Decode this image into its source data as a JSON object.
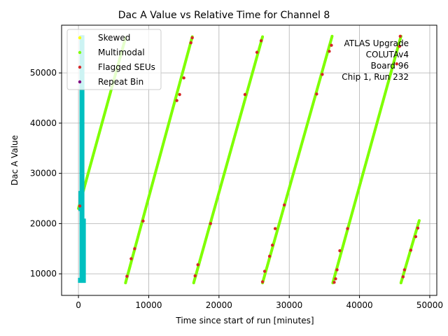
{
  "chart_data": {
    "type": "scatter",
    "title": "Dac A Value vs Relative Time for Channel 8",
    "xlabel": "Time since start of run [minutes]",
    "ylabel": "Dac A Value",
    "xlim": [
      -2400,
      51000
    ],
    "ylim": [
      5700,
      59500
    ],
    "xticks": [
      0,
      10000,
      20000,
      30000,
      40000,
      50000
    ],
    "yticks": [
      10000,
      20000,
      30000,
      40000,
      50000
    ],
    "grid": true,
    "legend_position": "top-left",
    "legend": [
      {
        "name": "Skewed",
        "color": "#ffff00"
      },
      {
        "name": "Multimodal",
        "color": "#7fff00"
      },
      {
        "name": "Flagged SEUs",
        "color": "#d62728"
      },
      {
        "name": "Repeat Bin",
        "color": "#800080"
      }
    ],
    "annotation": [
      "ATLAS Upgrade",
      "COLUTAv4",
      "Board 96",
      "Chip 1, Run 232"
    ],
    "repeat_bin_color": "#00c0c0",
    "repeat_bin_band": {
      "x_range": [
        80,
        1000
      ],
      "segments": [
        {
          "x": 80,
          "y": [
            8200,
            9200
          ]
        },
        {
          "x": 150,
          "y": [
            22500,
            26500
          ]
        },
        {
          "x": 300,
          "y": [
            8200,
            57500
          ]
        },
        {
          "x": 500,
          "y": [
            8200,
            57500
          ]
        },
        {
          "x": 700,
          "y": [
            8200,
            57500
          ]
        },
        {
          "x": 900,
          "y": [
            8200,
            21000
          ]
        }
      ]
    },
    "ramps": [
      {
        "x": [
          0,
          6700
        ],
        "y": [
          23000,
          57000
        ]
      },
      {
        "x": [
          6700,
          16200
        ],
        "y": [
          8200,
          57200
        ]
      },
      {
        "x": [
          16400,
          26200
        ],
        "y": [
          8200,
          57200
        ]
      },
      {
        "x": [
          26200,
          36100
        ],
        "y": [
          8200,
          57300
        ]
      },
      {
        "x": [
          36200,
          45900
        ],
        "y": [
          8200,
          57300
        ]
      },
      {
        "x": [
          45900,
          48500
        ],
        "y": [
          8200,
          20600
        ]
      }
    ],
    "flagged_seus": [
      {
        "x": 200,
        "y": 23500
      },
      {
        "x": 6900,
        "y": 9500
      },
      {
        "x": 7500,
        "y": 13000
      },
      {
        "x": 8000,
        "y": 15000
      },
      {
        "x": 9200,
        "y": 20500
      },
      {
        "x": 14000,
        "y": 44500
      },
      {
        "x": 14400,
        "y": 45700
      },
      {
        "x": 15000,
        "y": 49000
      },
      {
        "x": 16000,
        "y": 56000
      },
      {
        "x": 16200,
        "y": 57000
      },
      {
        "x": 16600,
        "y": 9600
      },
      {
        "x": 17000,
        "y": 11800
      },
      {
        "x": 18800,
        "y": 20000
      },
      {
        "x": 23700,
        "y": 45700
      },
      {
        "x": 25400,
        "y": 54100
      },
      {
        "x": 26000,
        "y": 56400
      },
      {
        "x": 26200,
        "y": 8400
      },
      {
        "x": 26500,
        "y": 10500
      },
      {
        "x": 27200,
        "y": 13500
      },
      {
        "x": 27600,
        "y": 15700
      },
      {
        "x": 28000,
        "y": 19000
      },
      {
        "x": 29300,
        "y": 23700
      },
      {
        "x": 33900,
        "y": 45800
      },
      {
        "x": 34700,
        "y": 49700
      },
      {
        "x": 35700,
        "y": 54300
      },
      {
        "x": 36000,
        "y": 55500
      },
      {
        "x": 36400,
        "y": 8300
      },
      {
        "x": 36600,
        "y": 9000
      },
      {
        "x": 36800,
        "y": 10800
      },
      {
        "x": 37200,
        "y": 14600
      },
      {
        "x": 38300,
        "y": 19000
      },
      {
        "x": 45300,
        "y": 51800
      },
      {
        "x": 45700,
        "y": 55300
      },
      {
        "x": 45800,
        "y": 57300
      },
      {
        "x": 46200,
        "y": 9400
      },
      {
        "x": 46400,
        "y": 10800
      },
      {
        "x": 47300,
        "y": 14700
      },
      {
        "x": 48000,
        "y": 17400
      },
      {
        "x": 48300,
        "y": 19100
      }
    ]
  }
}
